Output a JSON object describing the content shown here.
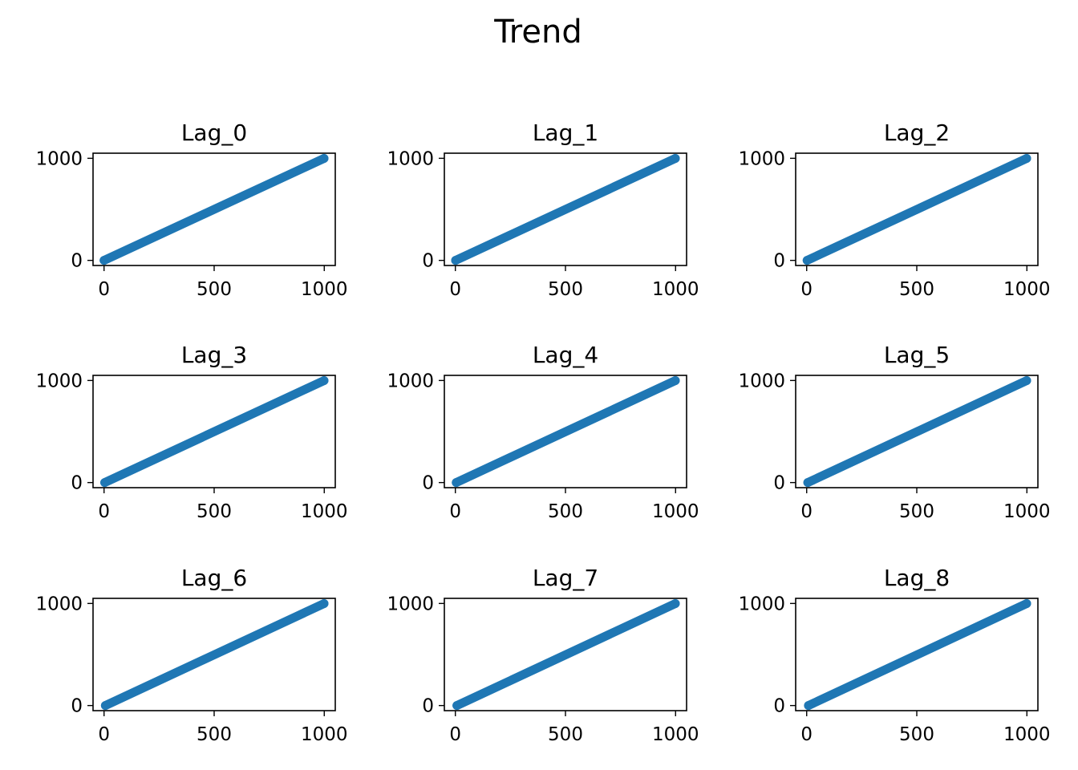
{
  "figure": {
    "title": "Trend"
  },
  "style": {
    "series_color": "#1f77b4",
    "axes_color": "#000000",
    "background": "#ffffff"
  },
  "chart_data": [
    {
      "type": "scatter",
      "title": "Lag_0",
      "x_range": [
        0,
        999
      ],
      "y_range": [
        0,
        999
      ],
      "x_lag": 0,
      "xlim": [
        -50,
        1050
      ],
      "ylim": [
        -50,
        1050
      ],
      "xticks": [
        0,
        500,
        1000
      ],
      "yticks": [
        0,
        1000
      ],
      "xlabel": "",
      "ylabel": "",
      "grid": false
    },
    {
      "type": "scatter",
      "title": "Lag_1",
      "x_range": [
        0,
        999
      ],
      "y_range": [
        0,
        999
      ],
      "x_lag": 1,
      "xlim": [
        -50,
        1050
      ],
      "ylim": [
        -50,
        1050
      ],
      "xticks": [
        0,
        500,
        1000
      ],
      "yticks": [
        0,
        1000
      ],
      "xlabel": "",
      "ylabel": "",
      "grid": false
    },
    {
      "type": "scatter",
      "title": "Lag_2",
      "x_range": [
        0,
        999
      ],
      "y_range": [
        0,
        999
      ],
      "x_lag": 2,
      "xlim": [
        -50,
        1050
      ],
      "ylim": [
        -50,
        1050
      ],
      "xticks": [
        0,
        500,
        1000
      ],
      "yticks": [
        0,
        1000
      ],
      "xlabel": "",
      "ylabel": "",
      "grid": false
    },
    {
      "type": "scatter",
      "title": "Lag_3",
      "x_range": [
        0,
        999
      ],
      "y_range": [
        0,
        999
      ],
      "x_lag": 3,
      "xlim": [
        -50,
        1050
      ],
      "ylim": [
        -50,
        1050
      ],
      "xticks": [
        0,
        500,
        1000
      ],
      "yticks": [
        0,
        1000
      ],
      "xlabel": "",
      "ylabel": "",
      "grid": false
    },
    {
      "type": "scatter",
      "title": "Lag_4",
      "x_range": [
        0,
        999
      ],
      "y_range": [
        0,
        999
      ],
      "x_lag": 4,
      "xlim": [
        -50,
        1050
      ],
      "ylim": [
        -50,
        1050
      ],
      "xticks": [
        0,
        500,
        1000
      ],
      "yticks": [
        0,
        1000
      ],
      "xlabel": "",
      "ylabel": "",
      "grid": false
    },
    {
      "type": "scatter",
      "title": "Lag_5",
      "x_range": [
        0,
        999
      ],
      "y_range": [
        0,
        999
      ],
      "x_lag": 5,
      "xlim": [
        -50,
        1050
      ],
      "ylim": [
        -50,
        1050
      ],
      "xticks": [
        0,
        500,
        1000
      ],
      "yticks": [
        0,
        1000
      ],
      "xlabel": "",
      "ylabel": "",
      "grid": false
    },
    {
      "type": "scatter",
      "title": "Lag_6",
      "x_range": [
        0,
        999
      ],
      "y_range": [
        0,
        999
      ],
      "x_lag": 6,
      "xlim": [
        -50,
        1050
      ],
      "ylim": [
        -50,
        1050
      ],
      "xticks": [
        0,
        500,
        1000
      ],
      "yticks": [
        0,
        1000
      ],
      "xlabel": "",
      "ylabel": "",
      "grid": false
    },
    {
      "type": "scatter",
      "title": "Lag_7",
      "x_range": [
        0,
        999
      ],
      "y_range": [
        0,
        999
      ],
      "x_lag": 7,
      "xlim": [
        -50,
        1050
      ],
      "ylim": [
        -50,
        1050
      ],
      "xticks": [
        0,
        500,
        1000
      ],
      "yticks": [
        0,
        1000
      ],
      "xlabel": "",
      "ylabel": "",
      "grid": false
    },
    {
      "type": "scatter",
      "title": "Lag_8",
      "x_range": [
        0,
        999
      ],
      "y_range": [
        0,
        999
      ],
      "x_lag": 8,
      "xlim": [
        -50,
        1050
      ],
      "ylim": [
        -50,
        1050
      ],
      "xticks": [
        0,
        500,
        1000
      ],
      "yticks": [
        0,
        1000
      ],
      "xlabel": "",
      "ylabel": "",
      "grid": false
    }
  ]
}
